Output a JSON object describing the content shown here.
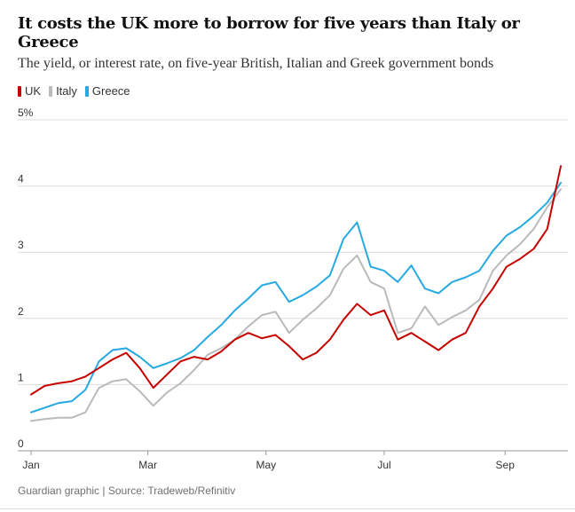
{
  "header": {
    "title": "It costs the UK more to borrow for five years than Italy or Greece",
    "subtitle": "The yield, or interest rate, on five-year British, Italian and Greek government bonds"
  },
  "footer": {
    "source": "Guardian graphic | Source: Tradeweb/Refinitiv"
  },
  "chart_data": {
    "type": "line",
    "title": "It costs the UK more to borrow for five years than Italy or Greece",
    "subtitle": "The yield, or interest rate, on five-year British, Italian and Greek government bonds",
    "xlabel": "",
    "ylabel": "",
    "x_tick_labels": [
      "Jan",
      "Mar",
      "May",
      "Jul",
      "Sep"
    ],
    "y_tick_labels": [
      "0",
      "1",
      "2",
      "3",
      "4",
      "5%"
    ],
    "y_ticks": [
      0,
      1,
      2,
      3,
      4,
      5
    ],
    "ylim": [
      0,
      5
    ],
    "grid": "horizontal",
    "legend_position": "top-left",
    "x": [
      "Jan 3",
      "Jan 10",
      "Jan 17",
      "Jan 24",
      "Jan 31",
      "Feb 7",
      "Feb 14",
      "Feb 21",
      "Feb 28",
      "Mar 7",
      "Mar 14",
      "Mar 21",
      "Mar 28",
      "Apr 4",
      "Apr 11",
      "Apr 18",
      "Apr 25",
      "May 2",
      "May 9",
      "May 16",
      "May 23",
      "May 30",
      "Jun 6",
      "Jun 13",
      "Jun 20",
      "Jun 27",
      "Jul 4",
      "Jul 11",
      "Jul 18",
      "Jul 25",
      "Aug 1",
      "Aug 8",
      "Aug 15",
      "Aug 22",
      "Aug 29",
      "Sep 5",
      "Sep 12",
      "Sep 19",
      "Sep 26",
      "Sep 29"
    ],
    "series": [
      {
        "name": "UK",
        "color": "#c70000",
        "values": [
          0.85,
          0.98,
          1.02,
          1.05,
          1.12,
          1.25,
          1.38,
          1.48,
          1.25,
          0.95,
          1.15,
          1.35,
          1.42,
          1.38,
          1.5,
          1.68,
          1.78,
          1.7,
          1.75,
          1.58,
          1.38,
          1.48,
          1.68,
          1.98,
          2.22,
          2.05,
          2.12,
          1.68,
          1.78,
          1.65,
          1.52,
          1.68,
          1.78,
          2.18,
          2.45,
          2.78,
          2.9,
          3.05,
          3.35,
          4.3
        ]
      },
      {
        "name": "Italy",
        "color": "#bababa",
        "values": [
          0.45,
          0.48,
          0.5,
          0.5,
          0.58,
          0.95,
          1.05,
          1.08,
          0.9,
          0.68,
          0.88,
          1.02,
          1.22,
          1.45,
          1.55,
          1.68,
          1.88,
          2.05,
          2.1,
          1.78,
          1.98,
          2.15,
          2.35,
          2.75,
          2.95,
          2.55,
          2.45,
          1.78,
          1.85,
          2.18,
          1.9,
          2.02,
          2.12,
          2.28,
          2.72,
          2.95,
          3.12,
          3.35,
          3.68,
          3.95
        ]
      },
      {
        "name": "Greece",
        "color": "#27a9e1",
        "values": [
          0.58,
          0.65,
          0.72,
          0.75,
          0.92,
          1.35,
          1.52,
          1.55,
          1.42,
          1.25,
          1.32,
          1.4,
          1.52,
          1.72,
          1.9,
          2.12,
          2.3,
          2.5,
          2.55,
          2.25,
          2.35,
          2.48,
          2.65,
          3.2,
          3.45,
          2.78,
          2.72,
          2.55,
          2.8,
          2.45,
          2.38,
          2.55,
          2.62,
          2.72,
          3.02,
          3.25,
          3.38,
          3.55,
          3.75,
          4.05
        ]
      }
    ]
  }
}
